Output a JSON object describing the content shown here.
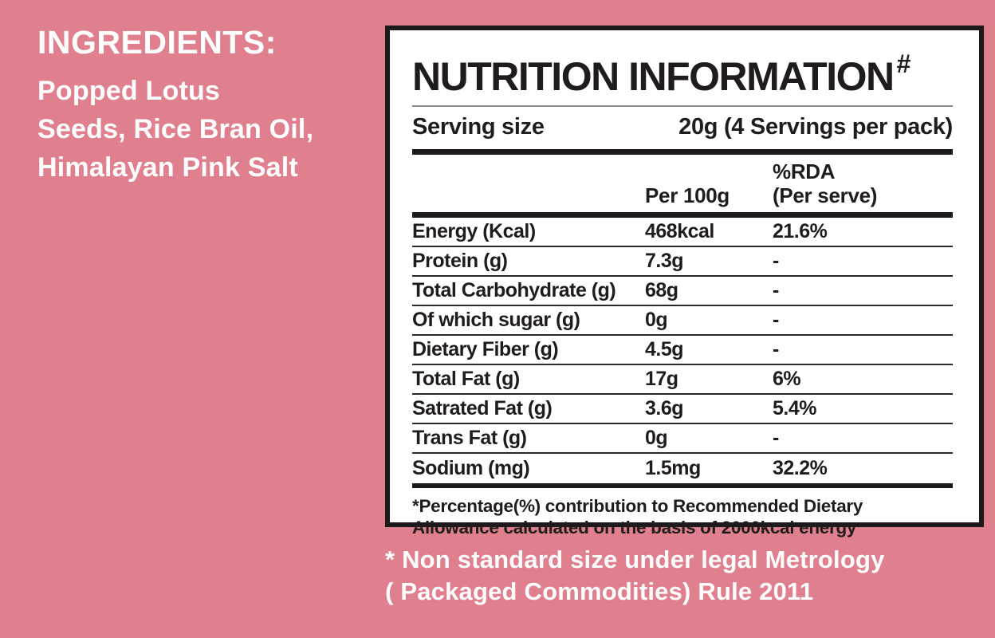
{
  "colors": {
    "background_pink": "#e0808e",
    "panel_background": "#ffffff",
    "panel_border": "#1d191a",
    "text_dark": "#201c1d",
    "text_white": "#ffffff",
    "rule_gray": "#8a8a8a"
  },
  "ingredients": {
    "heading": "INGREDIENTS:",
    "lines": [
      "Popped Lotus",
      "Seeds, Rice Bran Oil,",
      "Himalayan Pink Salt"
    ]
  },
  "nutrition_panel": {
    "title": "NUTRITION INFORMATION",
    "title_superscript": "#",
    "serving_size": {
      "label": "Serving size",
      "value": "20g (4 Servings per pack)"
    },
    "column_headers": {
      "per_100g": "Per 100g",
      "rda_line1": "%RDA",
      "rda_line2": "(Per serve)"
    },
    "rows": [
      {
        "label": "Energy (Kcal)",
        "per_100g": "468kcal",
        "rda": "21.6%"
      },
      {
        "label": "Protein (g)",
        "per_100g": "7.3g",
        "rda": "-"
      },
      {
        "label": "Total Carbohydrate (g)",
        "per_100g": "68g",
        "rda": "-"
      },
      {
        "label": "Of which sugar (g)",
        "per_100g": "0g",
        "rda": "-"
      },
      {
        "label": "Dietary Fiber (g)",
        "per_100g": "4.5g",
        "rda": "-"
      },
      {
        "label": "Total Fat (g)",
        "per_100g": "17g",
        "rda": "6%"
      },
      {
        "label": "Satrated Fat (g)",
        "per_100g": "3.6g",
        "rda": "5.4%"
      },
      {
        "label": "Trans Fat (g)",
        "per_100g": "0g",
        "rda": "-"
      },
      {
        "label": "Sodium (mg)",
        "per_100g": "1.5mg",
        "rda": "32.2%"
      }
    ],
    "footnote_line1": "*Percentage(%) contribution to Recommended Dietary",
    "footnote_line2": "Allowance calculated on the basis of 2000kcal energy"
  },
  "footer_note": {
    "line1": "* Non standard size under legal Metrology",
    "line2": "( Packaged Commodities) Rule 2011"
  }
}
